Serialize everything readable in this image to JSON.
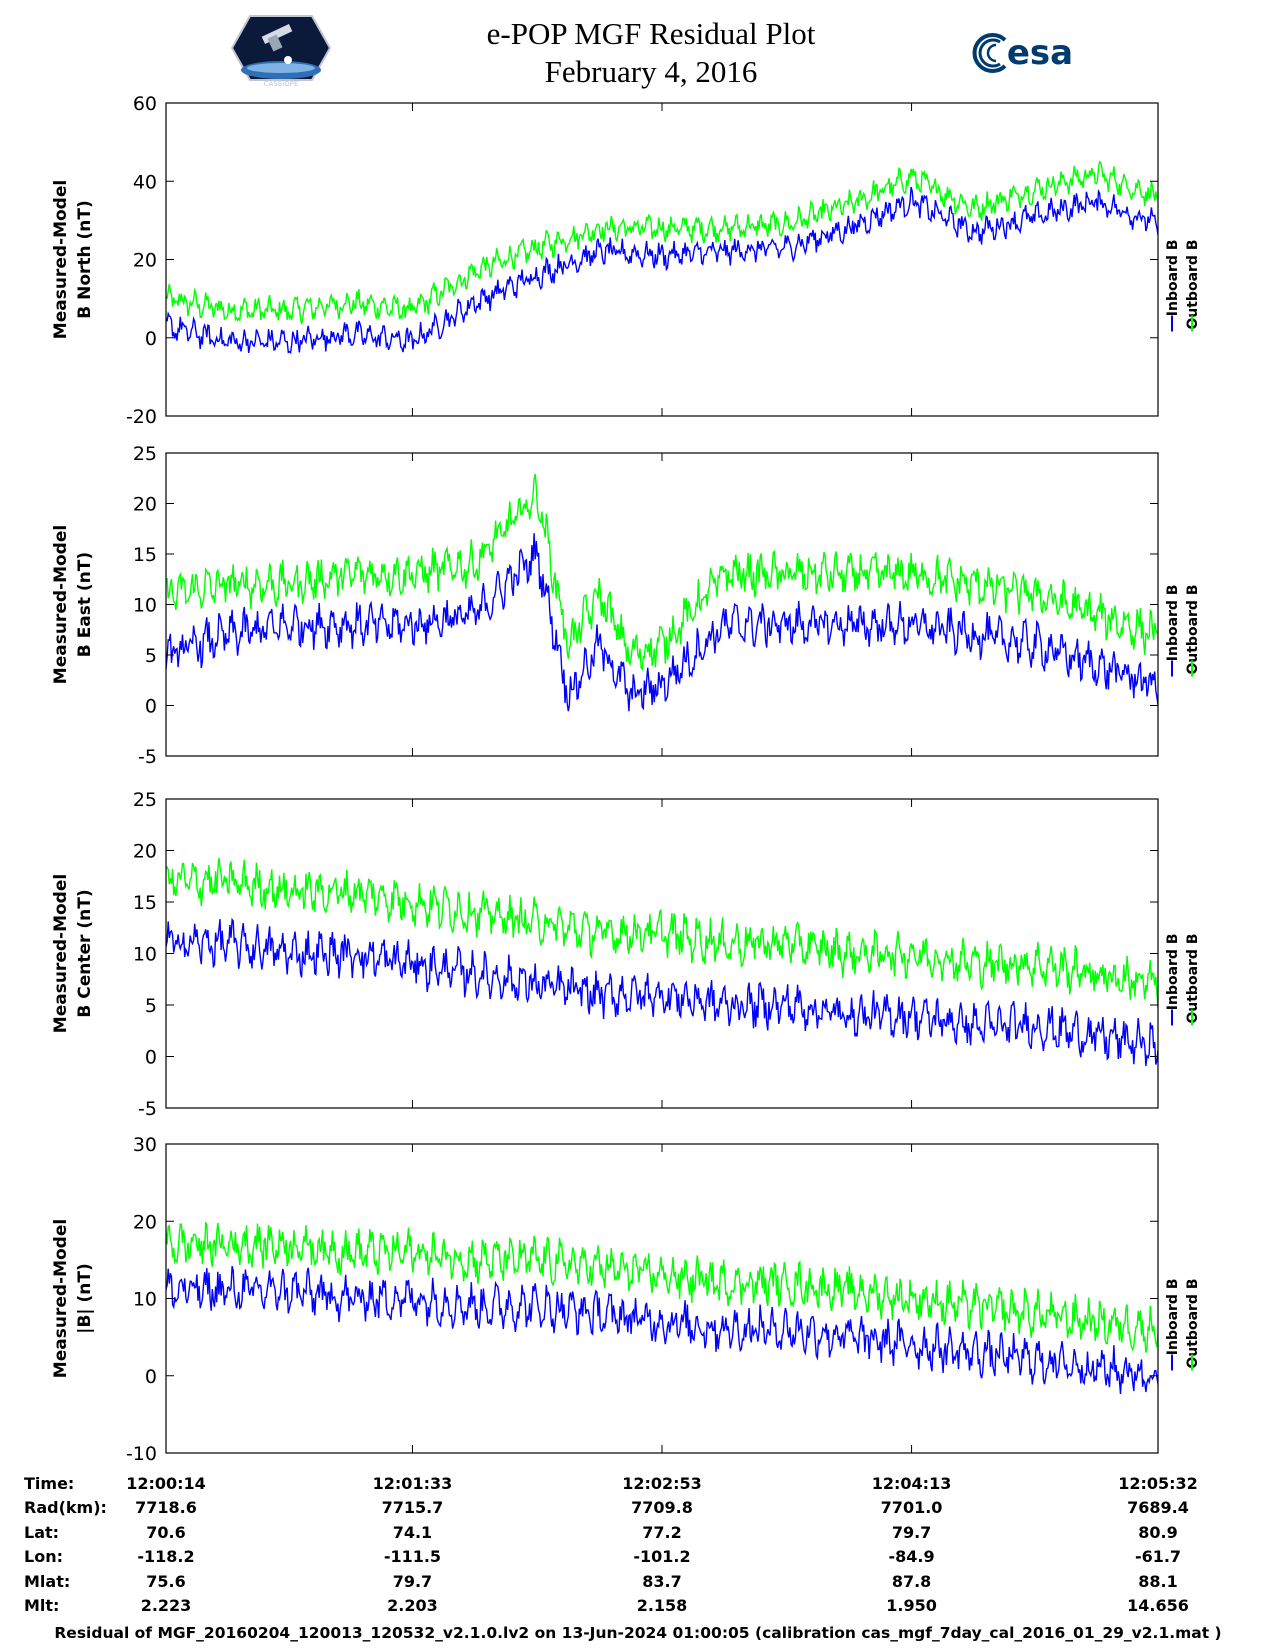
{
  "header": {
    "title_line1": "e-POP MGF Residual Plot",
    "title_line2": "February 4, 2016",
    "left_logo": {
      "icon": "cassiope-mission-patch-icon",
      "text": "CASSIOPE"
    },
    "right_logo": {
      "icon": "esa-logo-icon",
      "text": "esa"
    }
  },
  "colors": {
    "inboard": "#0000ff",
    "outboard": "#00ff00",
    "axes": "#000000"
  },
  "legend": {
    "inboard_label": "Inboard B",
    "outboard_label": "Outboard B"
  },
  "chart_data": [
    {
      "type": "line",
      "ylabel": [
        "Measured-Model",
        "B North (nT)"
      ],
      "ylim": [
        -20,
        60
      ],
      "yticks": [
        -20,
        0,
        20,
        40,
        60
      ],
      "x_ticks": [
        "12:00:14",
        "12:01:33",
        "12:02:53",
        "12:04:13",
        "12:05:32"
      ],
      "legend_placement": "right",
      "series": [
        {
          "name": "Inboard B",
          "color": "#0000ff",
          "x": [
            "12:00:14",
            "12:00:34",
            "12:00:54",
            "12:01:13",
            "12:01:33",
            "12:01:53",
            "12:02:13",
            "12:02:33",
            "12:02:53",
            "12:03:13",
            "12:03:33",
            "12:03:53",
            "12:04:13",
            "12:04:33",
            "12:04:53",
            "12:05:12",
            "12:05:32"
          ],
          "values": [
            3,
            -1,
            -1,
            1,
            -1,
            9,
            16,
            22,
            21,
            22,
            23,
            28,
            35,
            27,
            31,
            35,
            29
          ]
        },
        {
          "name": "Outboard B",
          "color": "#00ff00",
          "x": [
            "12:00:14",
            "12:00:34",
            "12:00:54",
            "12:01:13",
            "12:01:33",
            "12:01:53",
            "12:02:13",
            "12:02:33",
            "12:02:53",
            "12:03:13",
            "12:03:33",
            "12:03:53",
            "12:04:13",
            "12:04:33",
            "12:04:53",
            "12:05:12",
            "12:05:32"
          ],
          "values": [
            10,
            7,
            7,
            9,
            7,
            17,
            23,
            28,
            28,
            28,
            29,
            34,
            41,
            33,
            38,
            42,
            36
          ]
        }
      ]
    },
    {
      "type": "line",
      "ylabel": [
        "Measured-Model",
        "B East (nT)"
      ],
      "ylim": [
        -5,
        25
      ],
      "yticks": [
        -5,
        0,
        5,
        10,
        15,
        20,
        25
      ],
      "x_ticks": [
        "12:00:14",
        "12:01:33",
        "12:02:53",
        "12:04:13",
        "12:05:32"
      ],
      "legend_placement": "right",
      "series": [
        {
          "name": "Inboard B",
          "color": "#0000ff",
          "x": [
            "12:00:14",
            "12:00:34",
            "12:00:54",
            "12:01:13",
            "12:01:33",
            "12:01:53",
            "12:02:13",
            "12:02:23",
            "12:02:33",
            "12:02:43",
            "12:02:53",
            "12:03:13",
            "12:03:33",
            "12:03:53",
            "12:04:13",
            "12:04:33",
            "12:04:53",
            "12:05:12",
            "12:05:32"
          ],
          "values": [
            5,
            7,
            8,
            8,
            8,
            9,
            15,
            1,
            6,
            1,
            2,
            8,
            8,
            8,
            8,
            7,
            6,
            4,
            2
          ]
        },
        {
          "name": "Outboard B",
          "color": "#00ff00",
          "x": [
            "12:00:14",
            "12:00:34",
            "12:00:54",
            "12:01:13",
            "12:01:33",
            "12:01:53",
            "12:02:13",
            "12:02:23",
            "12:02:33",
            "12:02:43",
            "12:02:53",
            "12:03:13",
            "12:03:33",
            "12:03:53",
            "12:04:13",
            "12:04:33",
            "12:04:53",
            "12:05:12",
            "12:05:32"
          ],
          "values": [
            11,
            12,
            12,
            13,
            13,
            14,
            21,
            6,
            11,
            5,
            6,
            13,
            13,
            13,
            13,
            12,
            11,
            9,
            7
          ]
        }
      ]
    },
    {
      "type": "line",
      "ylabel": [
        "Measured-Model",
        "B Center (nT)"
      ],
      "ylim": [
        -5,
        25
      ],
      "yticks": [
        -5,
        0,
        5,
        10,
        15,
        20,
        25
      ],
      "x_ticks": [
        "12:00:14",
        "12:01:33",
        "12:02:53",
        "12:04:13",
        "12:05:32"
      ],
      "legend_placement": "right",
      "series": [
        {
          "name": "Inboard B",
          "color": "#0000ff",
          "x": [
            "12:00:14",
            "12:00:34",
            "12:00:54",
            "12:01:13",
            "12:01:33",
            "12:01:53",
            "12:02:13",
            "12:02:33",
            "12:02:53",
            "12:03:13",
            "12:03:33",
            "12:03:53",
            "12:04:13",
            "12:04:33",
            "12:04:53",
            "12:05:12",
            "12:05:32"
          ],
          "values": [
            11,
            11,
            10,
            10,
            9,
            8,
            7,
            6,
            6,
            5,
            5,
            4,
            4,
            3,
            3,
            2,
            1
          ]
        },
        {
          "name": "Outboard B",
          "color": "#00ff00",
          "x": [
            "12:00:14",
            "12:00:34",
            "12:00:54",
            "12:01:13",
            "12:01:33",
            "12:01:53",
            "12:02:13",
            "12:02:33",
            "12:02:53",
            "12:03:13",
            "12:03:33",
            "12:03:53",
            "12:04:13",
            "12:04:33",
            "12:04:53",
            "12:05:12",
            "12:05:32"
          ],
          "values": [
            17,
            17,
            16,
            16,
            15,
            14,
            13,
            12,
            12,
            11,
            11,
            10,
            10,
            9,
            9,
            8,
            7
          ]
        }
      ]
    },
    {
      "type": "line",
      "ylabel": [
        "Measured-Model",
        "|B| (nT)"
      ],
      "ylim": [
        -10,
        30
      ],
      "yticks": [
        -10,
        0,
        10,
        20,
        30
      ],
      "x_ticks": [
        "12:00:14",
        "12:01:33",
        "12:02:53",
        "12:04:13",
        "12:05:32"
      ],
      "legend_placement": "right",
      "series": [
        {
          "name": "Inboard B",
          "color": "#0000ff",
          "x": [
            "12:00:14",
            "12:00:34",
            "12:00:54",
            "12:01:13",
            "12:01:33",
            "12:01:53",
            "12:02:13",
            "12:02:33",
            "12:02:53",
            "12:03:13",
            "12:03:33",
            "12:03:53",
            "12:04:13",
            "12:04:33",
            "12:04:53",
            "12:05:12",
            "12:05:32"
          ],
          "values": [
            11,
            11,
            11,
            10,
            10,
            9,
            9,
            8,
            7,
            6,
            6,
            5,
            4,
            3,
            2,
            1,
            0
          ]
        },
        {
          "name": "Outboard B",
          "color": "#00ff00",
          "x": [
            "12:00:14",
            "12:00:34",
            "12:00:54",
            "12:01:13",
            "12:01:33",
            "12:01:53",
            "12:02:13",
            "12:02:33",
            "12:02:53",
            "12:03:13",
            "12:03:33",
            "12:03:53",
            "12:04:13",
            "12:04:33",
            "12:04:53",
            "12:05:12",
            "12:05:32"
          ],
          "values": [
            17,
            17,
            17,
            16,
            16,
            15,
            15,
            14,
            13,
            12,
            12,
            11,
            10,
            9,
            8,
            7,
            6
          ]
        }
      ]
    }
  ],
  "orbit_table": {
    "row_labels": [
      "Time:",
      "Rad(km):",
      "Lat:",
      "Lon:",
      "Mlat:",
      "Mlt:"
    ],
    "columns": [
      [
        "12:00:14",
        "7718.6",
        "70.6",
        "-118.2",
        "75.6",
        "2.223"
      ],
      [
        "12:01:33",
        "7715.7",
        "74.1",
        "-111.5",
        "79.7",
        "2.203"
      ],
      [
        "12:02:53",
        "7709.8",
        "77.2",
        "-101.2",
        "83.7",
        "2.158"
      ],
      [
        "12:04:13",
        "7701.0",
        "79.7",
        "-84.9",
        "87.8",
        "1.950"
      ],
      [
        "12:05:32",
        "7689.4",
        "80.9",
        "-61.7",
        "88.1",
        "14.656"
      ]
    ]
  },
  "footer": "Residual of MGF_20160204_120013_120532_v2.1.0.lv2 on 13-Jun-2024 01:00:05 (calibration cas_mgf_7day_cal_2016_01_29_v2.1.mat )"
}
